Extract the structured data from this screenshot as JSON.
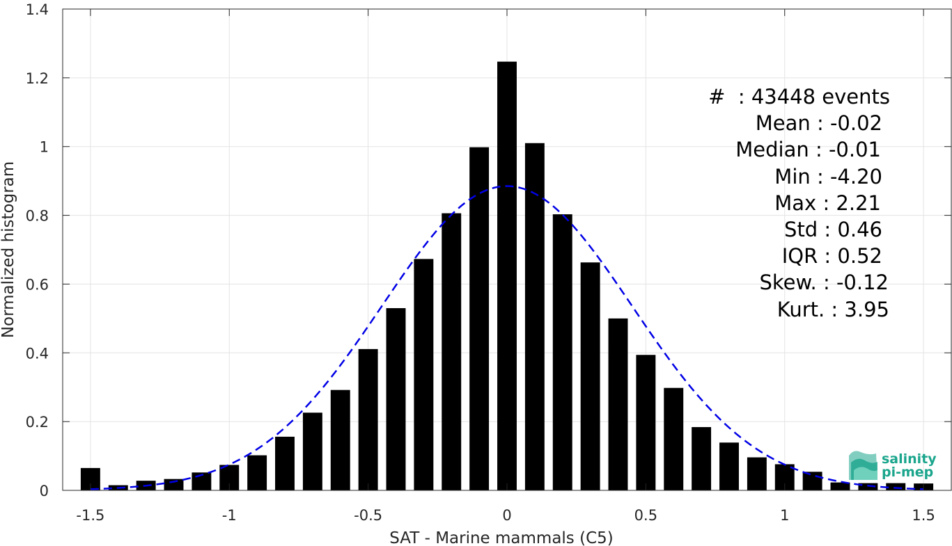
{
  "chart_data": {
    "type": "bar",
    "title": "",
    "xlabel": "SAT - Marine mammals (C5)",
    "ylabel": "Normalized histogram",
    "xlim": [
      -1.6,
      1.6
    ],
    "ylim": [
      0,
      1.4
    ],
    "xticks": [
      -1.5,
      -1,
      -0.5,
      0,
      0.5,
      1,
      1.5
    ],
    "xtick_labels": [
      "-1.5",
      "-1",
      "-0.5",
      "0",
      "0.5",
      "1",
      "1.5"
    ],
    "yticks": [
      0,
      0.2,
      0.4,
      0.6,
      0.8,
      1,
      1.2,
      1.4
    ],
    "ytick_labels": [
      "0",
      "0.2",
      "0.4",
      "0.6",
      "0.8",
      "1",
      "1.2",
      "1.4"
    ],
    "grid": true,
    "bar_width": 0.07,
    "bars": {
      "x": [
        -1.5,
        -1.4,
        -1.3,
        -1.2,
        -1.1,
        -1.0,
        -0.9,
        -0.8,
        -0.7,
        -0.6,
        -0.5,
        -0.4,
        -0.3,
        -0.2,
        -0.1,
        0.0,
        0.1,
        0.2,
        0.3,
        0.4,
        0.5,
        0.6,
        0.7,
        0.8,
        0.9,
        1.0,
        1.1,
        1.2,
        1.3,
        1.4,
        1.5
      ],
      "values": [
        0.065,
        0.015,
        0.028,
        0.033,
        0.052,
        0.074,
        0.102,
        0.156,
        0.226,
        0.292,
        0.411,
        0.53,
        0.673,
        0.806,
        0.998,
        1.247,
        1.01,
        0.803,
        0.663,
        0.5,
        0.394,
        0.298,
        0.184,
        0.139,
        0.096,
        0.076,
        0.054,
        0.023,
        0.021,
        0.021,
        0.02
      ],
      "color": "#000000"
    },
    "fit_curve": {
      "kind": "gaussian",
      "mean": 0.0,
      "std": 0.45,
      "peak": 0.885,
      "xrange": [
        -1.5,
        1.5
      ],
      "color": "#0000e6",
      "style": "dashed"
    }
  },
  "stats": {
    "lines": [
      "#  : 43448 events",
      "Mean : -0.02",
      "Median : -0.01",
      "Min : -4.20",
      "Max : 2.21",
      "Std : 0.46",
      "IQR : 0.52",
      "Skew. : -0.12",
      "Kurt. : 3.95"
    ]
  },
  "logo": {
    "line1": "salinity",
    "line2": "pi-mep",
    "color": "#1aa58c"
  }
}
